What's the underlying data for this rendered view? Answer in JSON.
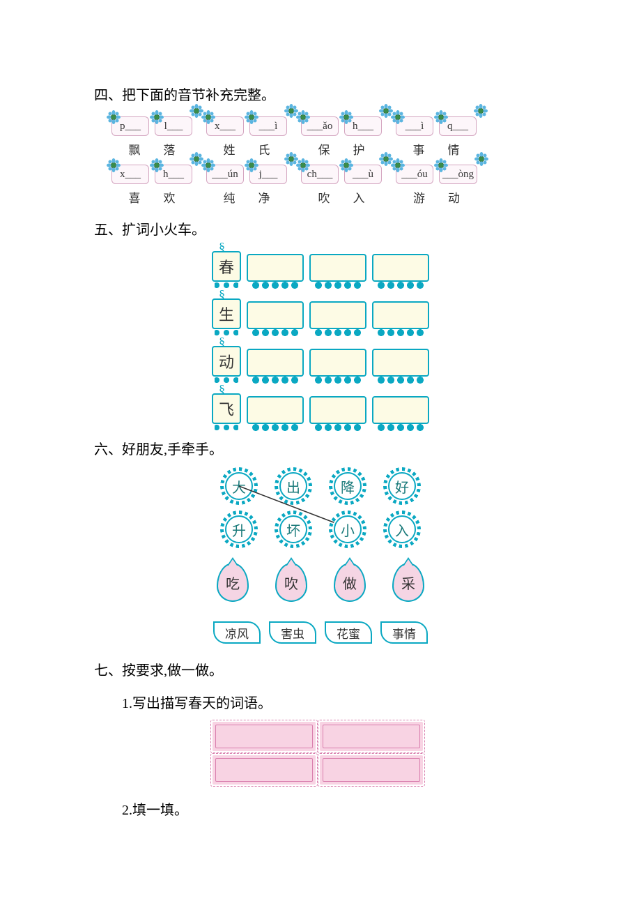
{
  "section4": {
    "title": "四、把下面的音节补充完整。",
    "rows": [
      [
        {
          "boxes": [
            "p___",
            "l___"
          ],
          "chars": [
            "飘",
            "落"
          ]
        },
        {
          "boxes": [
            "x___",
            "___ì"
          ],
          "chars": [
            "姓",
            "氏"
          ]
        },
        {
          "boxes": [
            "___ǎo",
            "h___"
          ],
          "chars": [
            "保",
            "护"
          ]
        },
        {
          "boxes": [
            "___ì",
            "q___"
          ],
          "chars": [
            "事",
            "情"
          ]
        }
      ],
      [
        {
          "boxes": [
            "x___",
            "h___"
          ],
          "chars": [
            "喜",
            "欢"
          ]
        },
        {
          "boxes": [
            "___ún",
            "j___"
          ],
          "chars": [
            "纯",
            "净"
          ]
        },
        {
          "boxes": [
            "ch___",
            "___ù"
          ],
          "chars": [
            "吹",
            "入"
          ]
        },
        {
          "boxes": [
            "___óu",
            "___òng"
          ],
          "chars": [
            "游",
            "动"
          ]
        }
      ]
    ]
  },
  "section5": {
    "title": "五、扩词小火车。",
    "trains": [
      {
        "head": "春"
      },
      {
        "head": "生"
      },
      {
        "head": "动"
      },
      {
        "head": "飞"
      }
    ],
    "cars_per_train": 3
  },
  "section6": {
    "title": "六、好朋友,手牵手。",
    "row1": [
      "大",
      "出",
      "降",
      "好"
    ],
    "row2": [
      "升",
      "坏",
      "小",
      "入"
    ],
    "drops": [
      "吃",
      "吹",
      "做",
      "采"
    ],
    "leaves": [
      "凉风",
      "害虫",
      "花蜜",
      "事情"
    ]
  },
  "section7": {
    "title": "七、按要求,做一做。",
    "sub1": "1.写出描写春天的词语。",
    "sub2": "2.填一填。",
    "answer_box_count": 4
  },
  "colors": {
    "accent": "#0aa8c2",
    "pink_box": "#f8d3e3",
    "pink_border": "#d97fae",
    "cream": "#fdfbe5",
    "drop_fill": "#f5d5e4"
  }
}
